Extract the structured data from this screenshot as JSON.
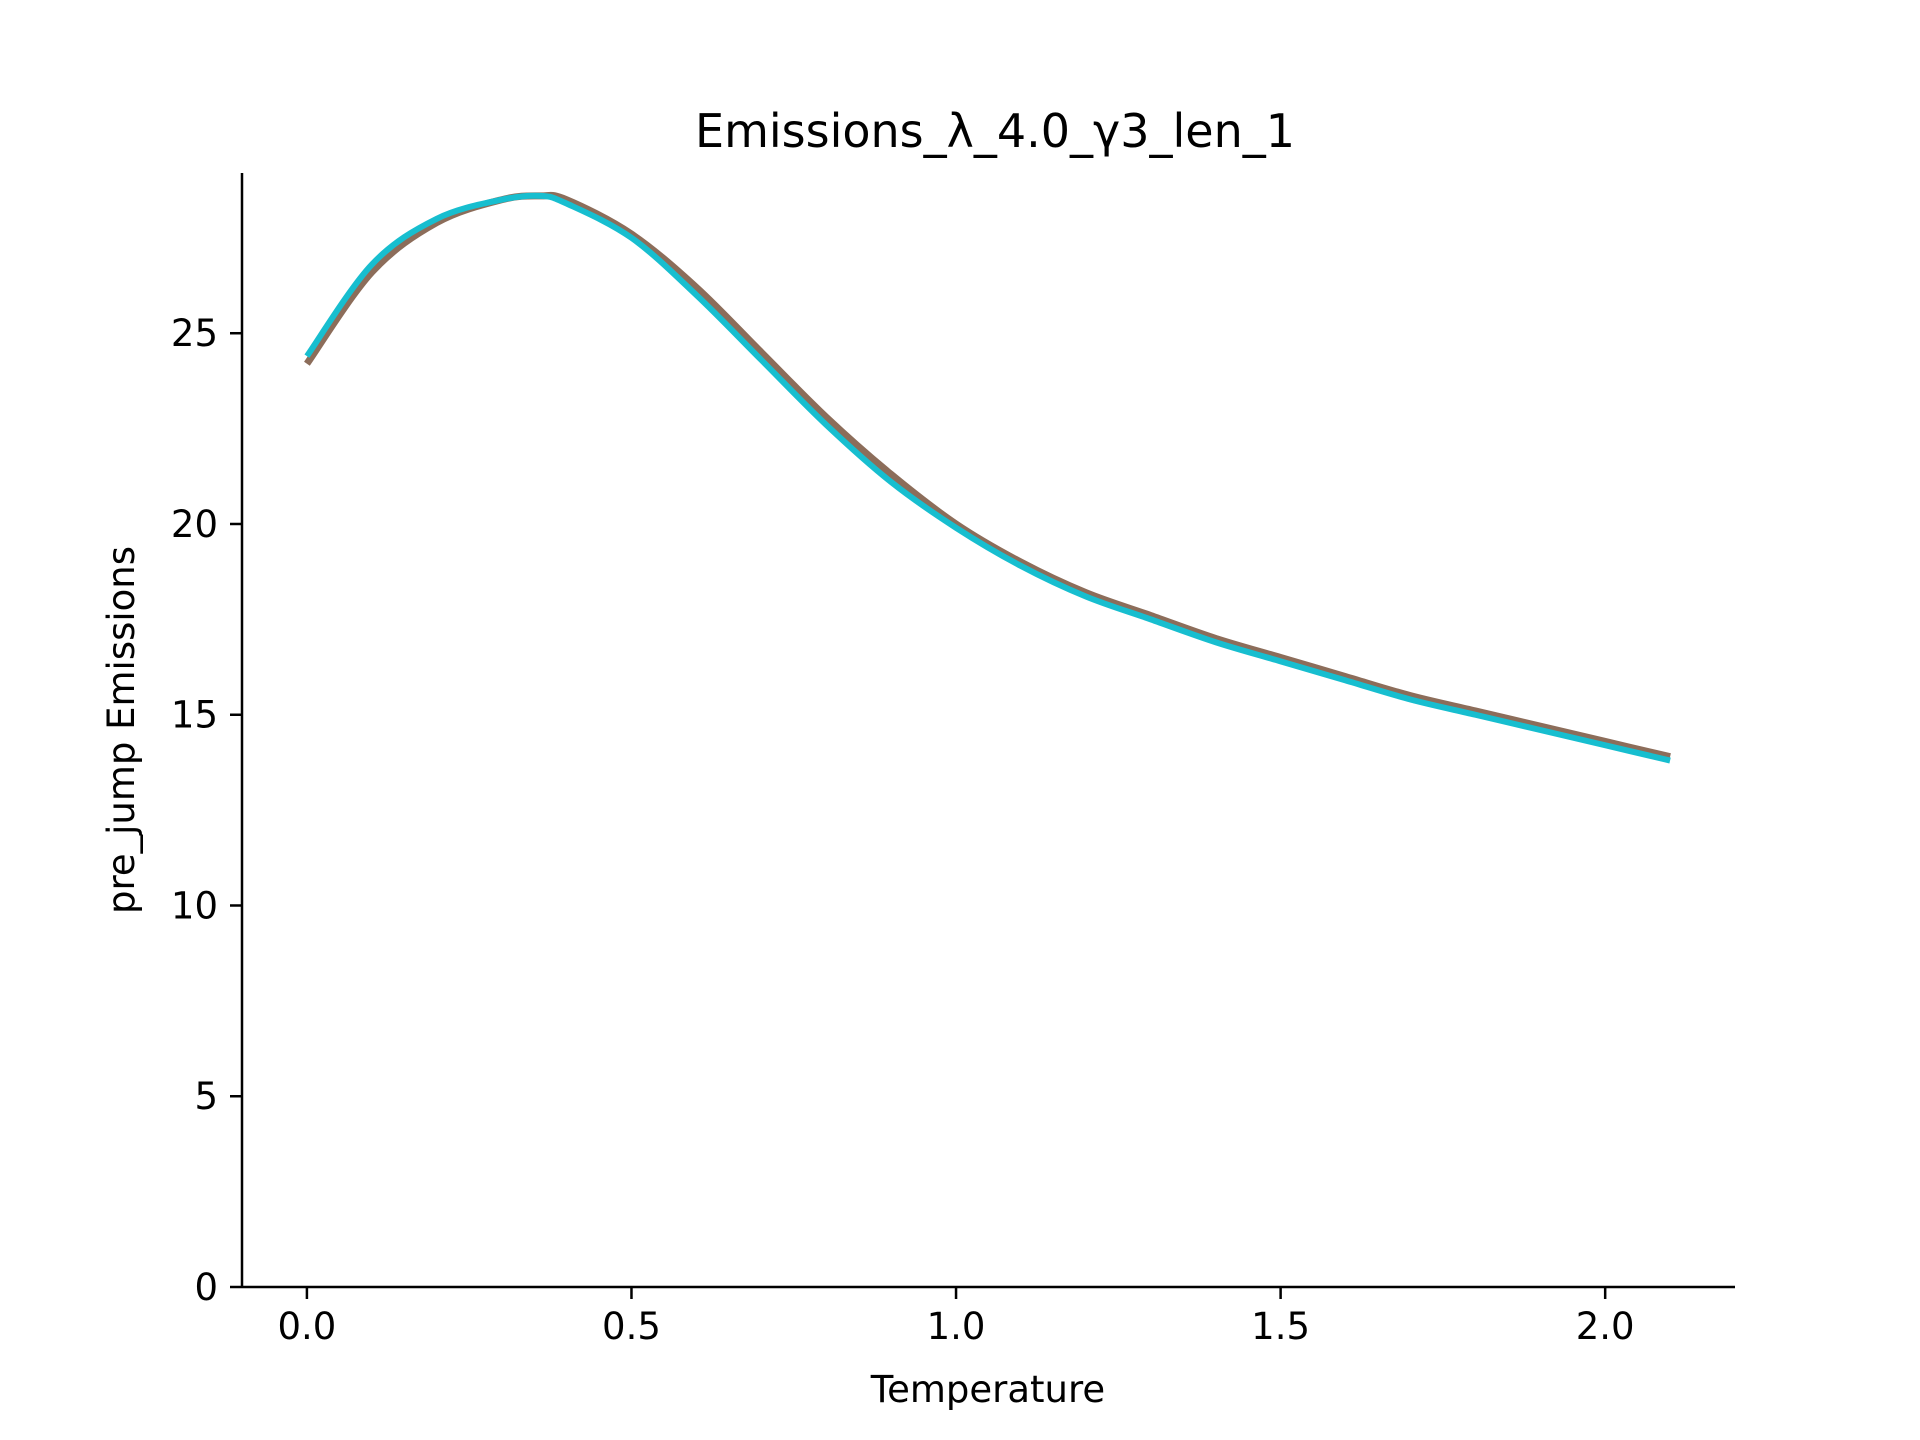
{
  "chart_data": {
    "type": "line",
    "title": "Emissions_λ_4.0_γ3_len_1",
    "xlabel": "Temperature",
    "ylabel": "pre_jump Emissions",
    "xlim": [
      -0.1,
      2.2
    ],
    "ylim": [
      0,
      29.2
    ],
    "xticks": [
      0.0,
      0.5,
      1.0,
      1.5,
      2.0
    ],
    "xtick_labels": [
      "0.0",
      "0.5",
      "1.0",
      "1.5",
      "2.0"
    ],
    "yticks": [
      0,
      5,
      10,
      15,
      20,
      25
    ],
    "ytick_labels": [
      "0",
      "5",
      "10",
      "15",
      "20",
      "25"
    ],
    "grid": false,
    "legend": false,
    "x": [
      0.0,
      0.1,
      0.2,
      0.3,
      0.36,
      0.4,
      0.5,
      0.6,
      0.7,
      0.8,
      0.9,
      1.0,
      1.1,
      1.2,
      1.3,
      1.4,
      1.5,
      1.6,
      1.7,
      1.8,
      1.9,
      2.0,
      2.1
    ],
    "series": [
      {
        "color": "#8c6d5a",
        "width": 7,
        "values": [
          24.2,
          26.6,
          27.9,
          28.5,
          28.6,
          28.5,
          27.6,
          26.2,
          24.5,
          22.8,
          21.3,
          20.0,
          19.0,
          18.2,
          17.6,
          17.0,
          16.5,
          16.0,
          15.5,
          15.1,
          14.7,
          14.3,
          13.9
        ]
      },
      {
        "color": "#17becf",
        "width": 6,
        "values": [
          24.4,
          26.8,
          28.0,
          28.5,
          28.6,
          28.4,
          27.5,
          26.0,
          24.3,
          22.6,
          21.1,
          19.9,
          18.9,
          18.1,
          17.5,
          16.9,
          16.4,
          15.9,
          15.4,
          15.0,
          14.6,
          14.2,
          13.8
        ]
      }
    ]
  }
}
